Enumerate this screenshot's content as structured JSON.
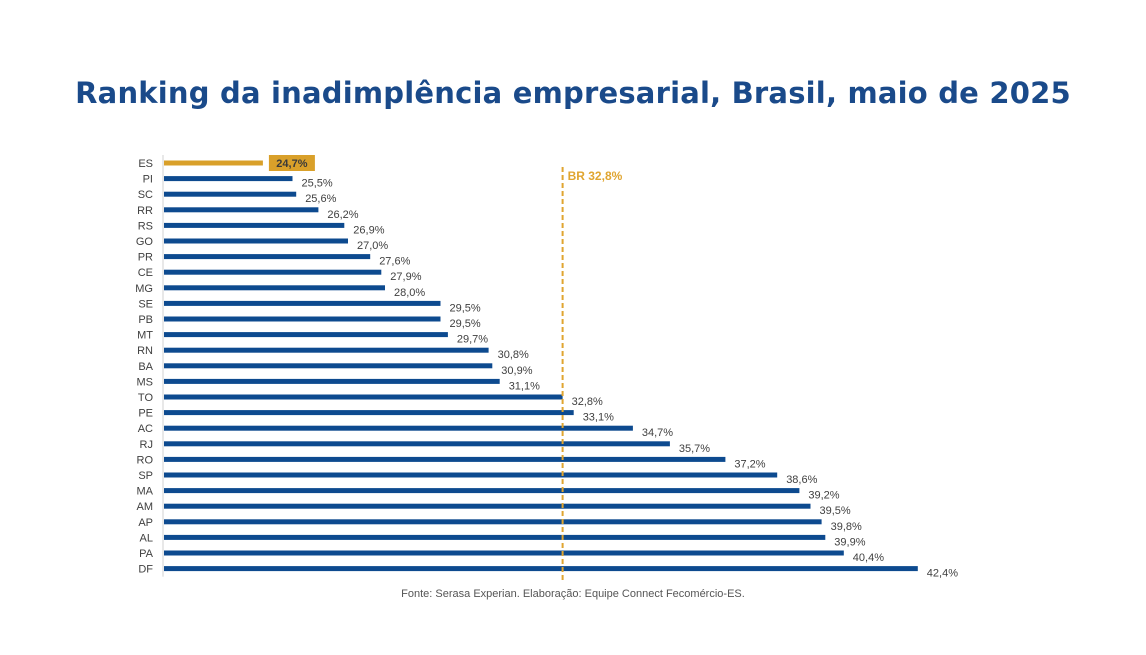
{
  "chart_data": {
    "type": "bar",
    "orientation": "horizontal",
    "title": "Ranking da inadimplência empresarial, Brasil, maio de 2025",
    "xlabel": "",
    "ylabel": "",
    "grid": false,
    "categories": [
      "ES",
      "PI",
      "SC",
      "RR",
      "RS",
      "GO",
      "PR",
      "CE",
      "MG",
      "SE",
      "PB",
      "MT",
      "RN",
      "BA",
      "MS",
      "TO",
      "PE",
      "AC",
      "RJ",
      "RO",
      "SP",
      "MA",
      "AM",
      "AP",
      "AL",
      "PA",
      "DF"
    ],
    "values": [
      24.7,
      25.5,
      25.6,
      26.2,
      26.9,
      27.0,
      27.6,
      27.9,
      28.0,
      29.5,
      29.5,
      29.7,
      30.8,
      30.9,
      31.1,
      32.8,
      33.1,
      34.7,
      35.7,
      37.2,
      38.6,
      39.2,
      39.5,
      39.8,
      39.9,
      40.4,
      42.4
    ],
    "labels": [
      "24,7%",
      "25,5%",
      "25,6%",
      "26,2%",
      "26,9%",
      "27,0%",
      "27,6%",
      "27,9%",
      "28,0%",
      "29,5%",
      "29,5%",
      "29,7%",
      "30,8%",
      "30,9%",
      "31,1%",
      "32,8%",
      "33,1%",
      "34,7%",
      "35,7%",
      "37,2%",
      "38,6%",
      "39,2%",
      "39,5%",
      "39,8%",
      "39,9%",
      "40,4%",
      "42,4%"
    ],
    "highlight": "ES",
    "xlim": [
      22.0,
      43.5
    ],
    "reference_line": {
      "value": 32.8,
      "label": "BR 32,8%"
    },
    "colors": {
      "bar": "#0d4a8f",
      "highlight": "#d9a02a",
      "highlight_label_bg": "#d9a02a",
      "reference": "#e0a530",
      "title": "#1a4a8a"
    }
  },
  "source": "Fonte: Serasa Experian.  Elaboração: Equipe Connect Fecomércio-ES."
}
